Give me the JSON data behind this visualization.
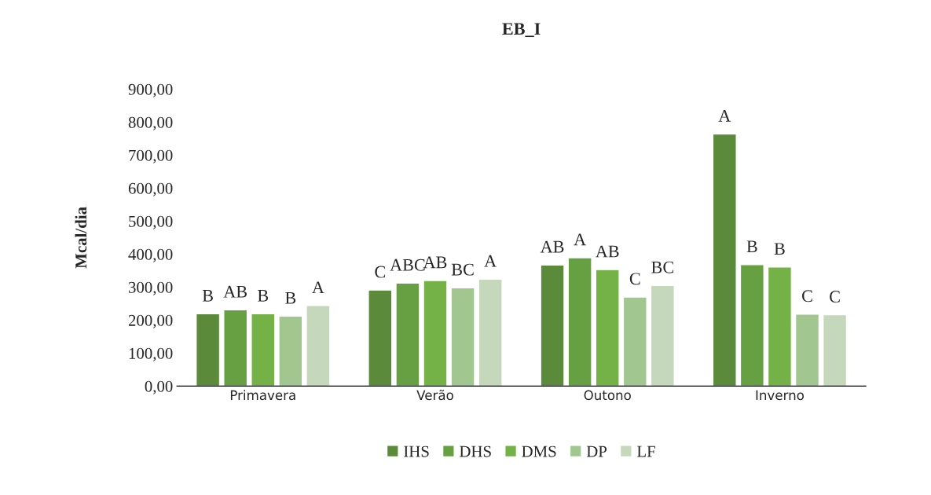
{
  "chart_data": {
    "type": "bar",
    "title": "EB_I",
    "ylabel": "Mcal/dia",
    "categories": [
      "Primavera",
      "Verão",
      "Outono",
      "Inverno"
    ],
    "series": [
      {
        "name": "IHS",
        "color": "#5a8a3a",
        "values": [
          219,
          291,
          367,
          764
        ],
        "value_labels": [
          "B",
          "C",
          "AB",
          "A"
        ]
      },
      {
        "name": "DHS",
        "color": "#67a043",
        "values": [
          231,
          312,
          389,
          368
        ],
        "value_labels": [
          "AB",
          "ABC",
          "A",
          "B"
        ]
      },
      {
        "name": "DMS",
        "color": "#74b146",
        "values": [
          219,
          320,
          353,
          361
        ],
        "value_labels": [
          "B",
          "AB",
          "AB",
          "B"
        ]
      },
      {
        "name": "DP",
        "color": "#a2c690",
        "values": [
          212,
          298,
          270,
          218
        ],
        "value_labels": [
          "B",
          "BC",
          "C",
          "C"
        ]
      },
      {
        "name": "LF",
        "color": "#c5d8bb",
        "values": [
          244,
          324,
          305,
          216
        ],
        "value_labels": [
          "A",
          "A",
          "BC",
          "C"
        ]
      }
    ],
    "ylim": [
      0,
      900
    ],
    "yticks": [
      {
        "value": 0,
        "label": "0,00"
      },
      {
        "value": 100,
        "label": "100,00"
      },
      {
        "value": 200,
        "label": "200,00"
      },
      {
        "value": 300,
        "label": "300,00"
      },
      {
        "value": 400,
        "label": "400,00"
      },
      {
        "value": 500,
        "label": "500,00"
      },
      {
        "value": 600,
        "label": "600,00"
      },
      {
        "value": 700,
        "label": "700,00"
      },
      {
        "value": 800,
        "label": "800,00"
      },
      {
        "value": 900,
        "label": "900,00"
      }
    ],
    "legend": "bottom",
    "grid": false
  }
}
